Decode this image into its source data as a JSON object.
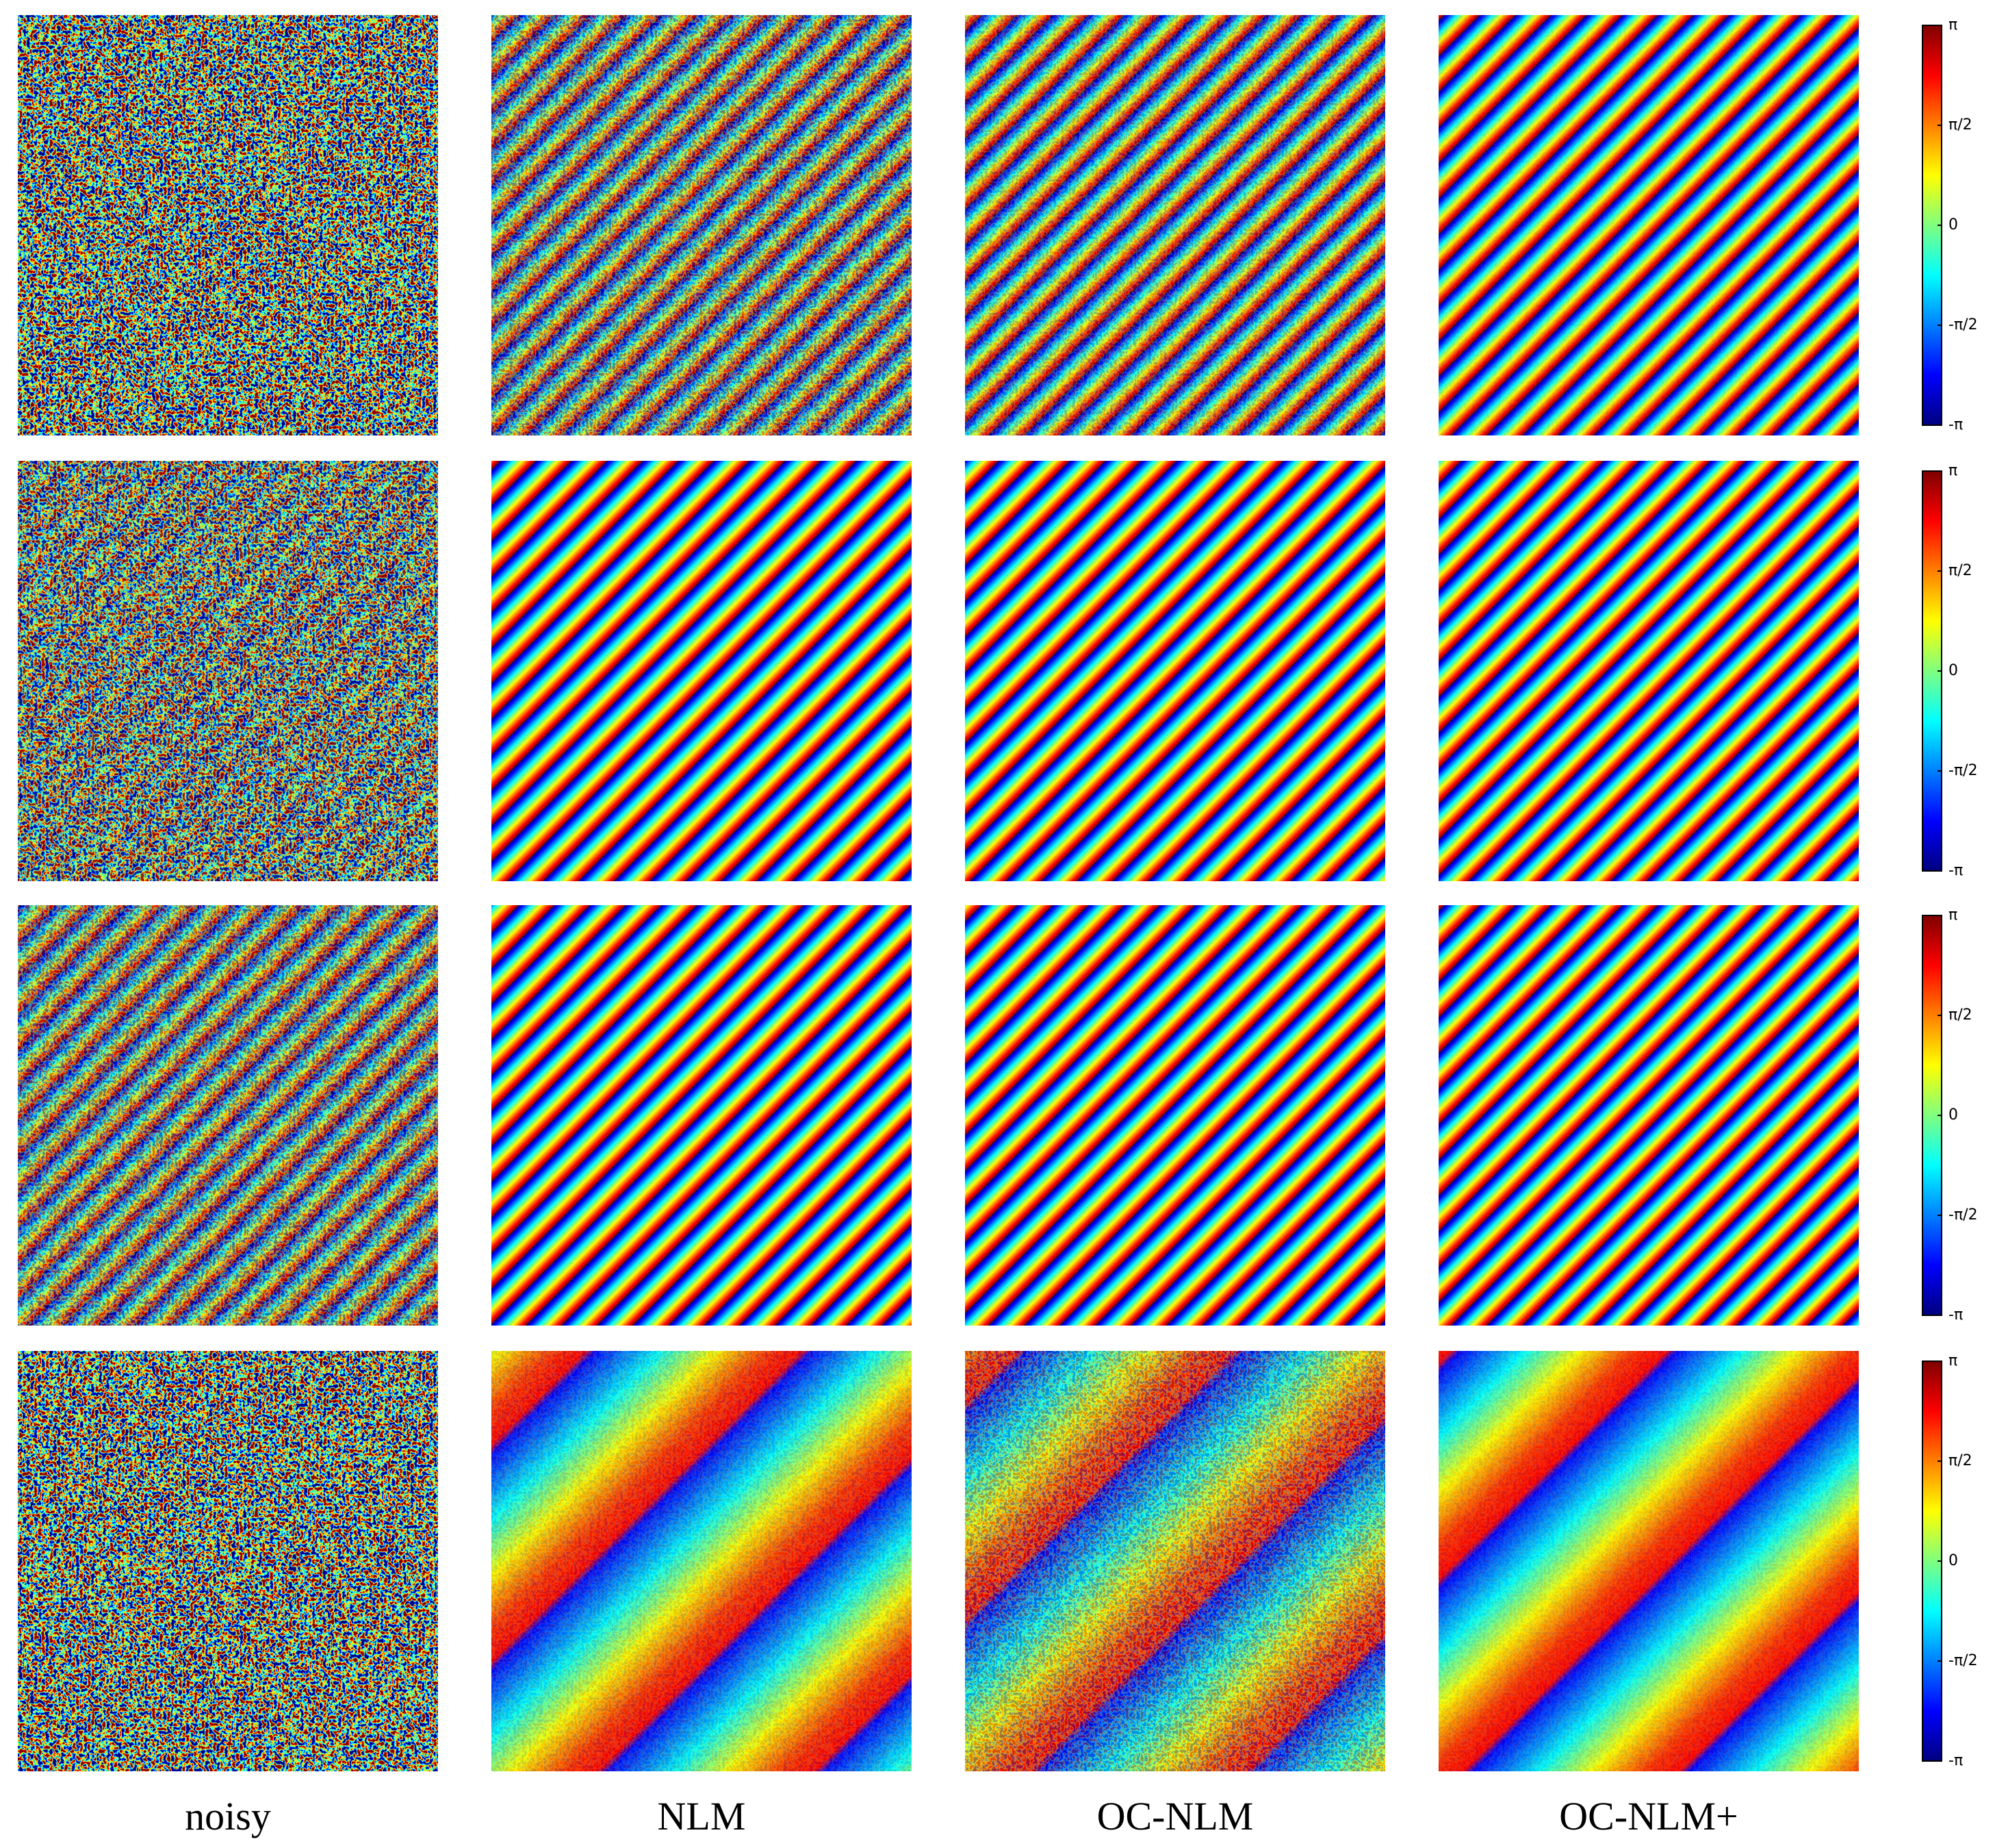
{
  "columns": [
    {
      "label": "noisy"
    },
    {
      "label": "NLM"
    },
    {
      "label": "OC-NLM"
    },
    {
      "label": "OC-NLM+"
    }
  ],
  "colorbar": {
    "ticks": [
      {
        "value": 3.14159,
        "label": "π"
      },
      {
        "value": 1.5708,
        "label": "π/2"
      },
      {
        "value": 0,
        "label": "0"
      },
      {
        "value": -1.5708,
        "label": "-π/2"
      },
      {
        "value": -3.14159,
        "label": "-π"
      }
    ]
  }
}
